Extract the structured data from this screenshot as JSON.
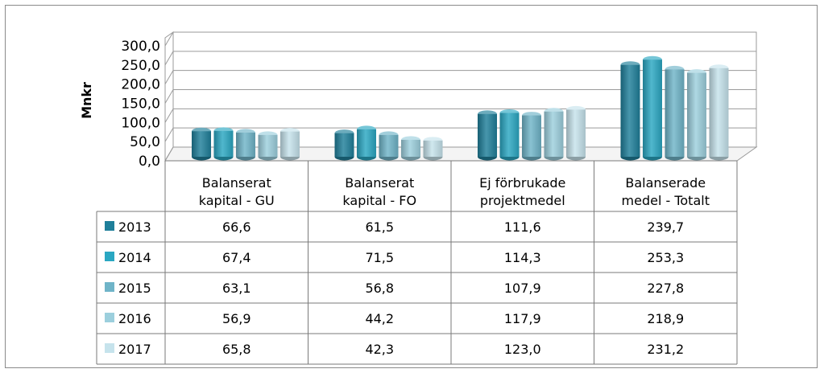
{
  "chart_data": {
    "type": "bar",
    "ylabel": "Mnkr",
    "ylim": [
      0,
      300
    ],
    "yticks": [
      "0,0",
      "50,0",
      "100,0",
      "150,0",
      "200,0",
      "250,0",
      "300,0"
    ],
    "grid": true,
    "categories": [
      [
        "Balanserat",
        "kapital - GU"
      ],
      [
        "Balanserat",
        "kapital - FO"
      ],
      [
        "Ej förbrukade",
        "projektmedel"
      ],
      [
        "Balanserade",
        "medel - Totalt"
      ]
    ],
    "series": [
      {
        "name": "2013",
        "color": "#1f7f9a",
        "values": [
          66.6,
          61.5,
          111.6,
          239.7
        ],
        "labels": [
          "66,6",
          "61,5",
          "111,6",
          "239,7"
        ]
      },
      {
        "name": "2014",
        "color": "#2aa7c2",
        "values": [
          67.4,
          71.5,
          114.3,
          253.3
        ],
        "labels": [
          "67,4",
          "71,5",
          "114,3",
          "253,3"
        ]
      },
      {
        "name": "2015",
        "color": "#6fb4c8",
        "values": [
          63.1,
          56.8,
          107.9,
          227.8
        ],
        "labels": [
          "63,1",
          "56,8",
          "107,9",
          "227,8"
        ]
      },
      {
        "name": "2016",
        "color": "#9ccfdd",
        "values": [
          56.9,
          44.2,
          117.9,
          218.9
        ],
        "labels": [
          "56,9",
          "44,2",
          "117,9",
          "218,9"
        ]
      },
      {
        "name": "2017",
        "color": "#c6e3ec",
        "values": [
          65.8,
          42.3,
          123.0,
          231.2
        ],
        "labels": [
          "65,8",
          "42,3",
          "123,0",
          "231,2"
        ]
      }
    ],
    "data_table": true
  }
}
